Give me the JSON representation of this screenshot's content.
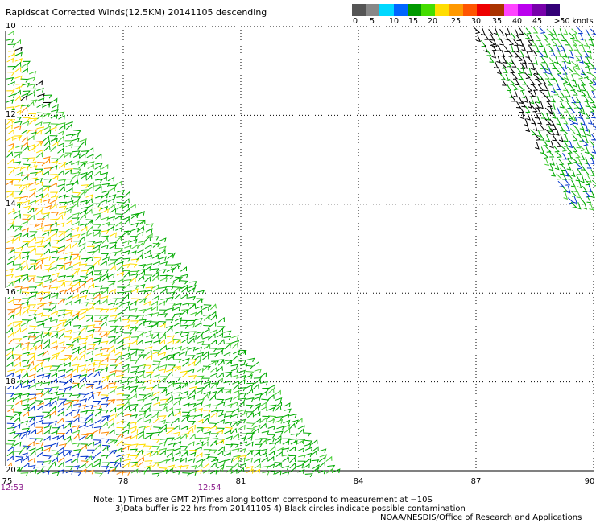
{
  "title": "Rapidscat Corrected Winds(12.5KM) 20141105 descending",
  "colorbar": {
    "labels": [
      "0",
      "5",
      "10",
      "15",
      "20",
      "25",
      "30",
      "35",
      "40",
      "45",
      ">50 knots"
    ],
    "colors": [
      "#555555",
      "#888888",
      "#00d8ff",
      "#0066ff",
      "#009900",
      "#44dd00",
      "#ffdd00",
      "#ff9900",
      "#ff5500",
      "#ee0000",
      "#aa3300",
      "#ff44ff",
      "#bb00ee",
      "#7700aa",
      "#330077"
    ]
  },
  "axes": {
    "lat_labels": [
      "10",
      "12",
      "14",
      "16",
      "18",
      "20"
    ],
    "lon_labels": [
      "75",
      "78",
      "81",
      "84",
      "87",
      "90"
    ],
    "lat_values": [
      -10,
      -12,
      -14,
      -16,
      -18,
      -20
    ],
    "lon_values": [
      75,
      78,
      81,
      84,
      87,
      90
    ],
    "grid": "dotted"
  },
  "times": [
    {
      "label": "12:53",
      "lon": 75
    },
    {
      "label": "12:54",
      "lon": 80.2
    }
  ],
  "notes": {
    "line1": "Note: 1) Times are GMT 2)Times along bottom correspond to measurement at −10S",
    "line2": "3)Data buffer is 22 hrs from 20141105 4) Black circles indicate possible contamination",
    "credit": "NOAA/NESDIS/Office of Research and Applications"
  },
  "wind_colors": {
    "blue": "#0033cc",
    "green": "#00aa00",
    "lightgreen": "#44cc33",
    "yellow": "#ffdd00",
    "orange": "#ff8800",
    "black": "#000000"
  }
}
